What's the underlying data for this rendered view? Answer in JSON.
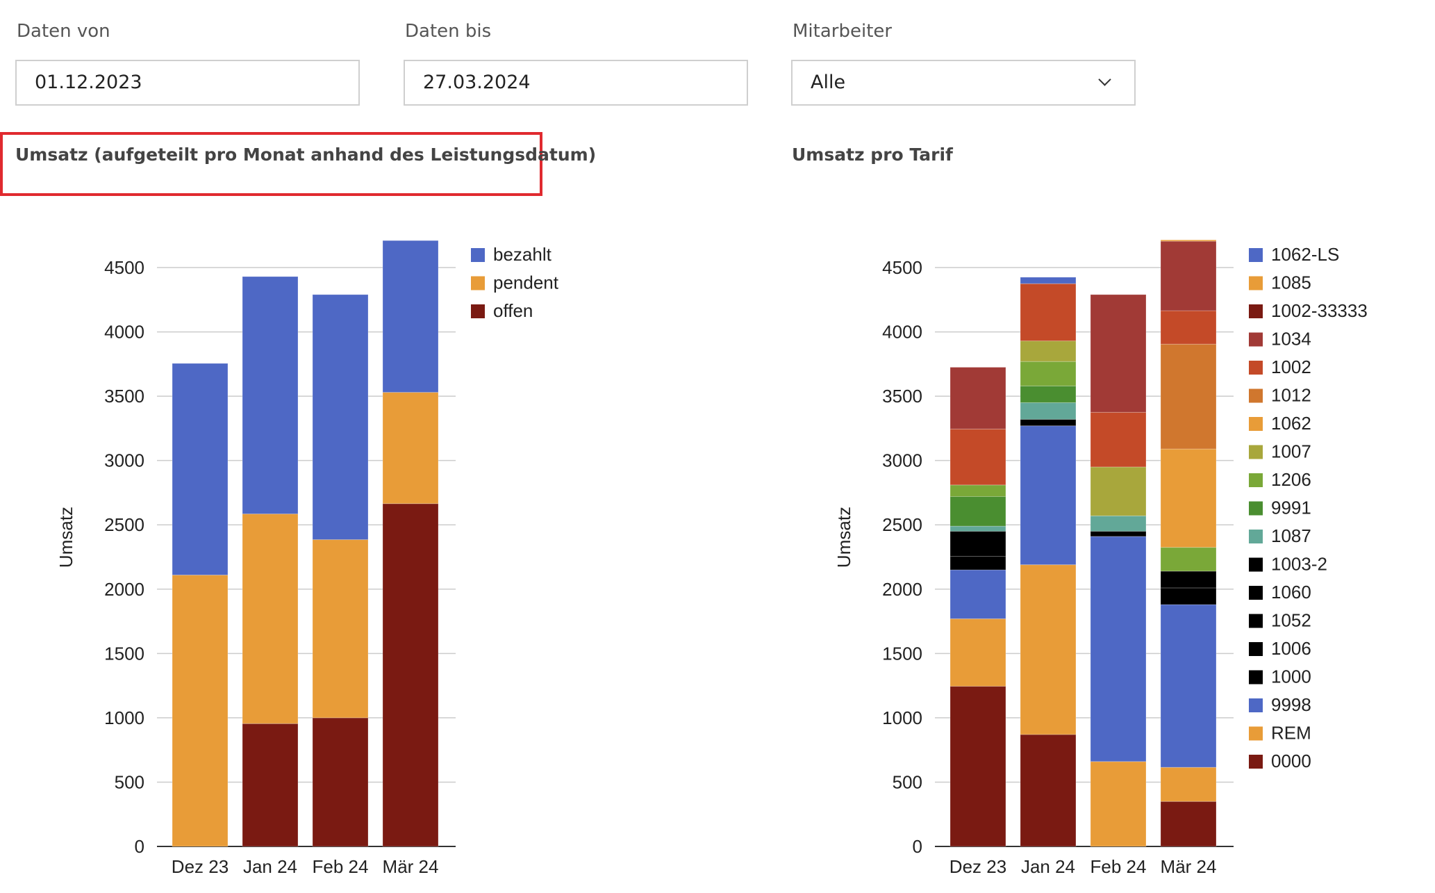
{
  "filters": {
    "date_from": {
      "label": "Daten von",
      "value": "01.12.2023"
    },
    "date_to": {
      "label": "Daten bis",
      "value": "27.03.2024"
    },
    "employee": {
      "label": "Mitarbeiter",
      "value": "Alle"
    }
  },
  "chart_data": [
    {
      "type": "bar",
      "stacked": true,
      "title": "Umsatz (aufgeteilt pro Monat anhand des Leistungsdatum)",
      "xlabel": "",
      "ylabel": "Umsatz",
      "ylim": [
        0,
        4700
      ],
      "yticks": [
        0,
        500,
        1000,
        1500,
        2000,
        2500,
        3000,
        3500,
        4000,
        4500
      ],
      "grid": true,
      "legend": "right",
      "categories": [
        "Dez 23",
        "Jan 24",
        "Feb 24",
        "Mär 24"
      ],
      "series": [
        {
          "name": "bezahlt",
          "color": "#4e68c5",
          "values": [
            1645,
            1845,
            1905,
            1180
          ]
        },
        {
          "name": "pendent",
          "color": "#e89c38",
          "values": [
            2110,
            1630,
            1385,
            865
          ]
        },
        {
          "name": "offen",
          "color": "#7a1a12",
          "values": [
            0,
            955,
            1000,
            2665
          ]
        }
      ]
    },
    {
      "type": "bar",
      "stacked": true,
      "title": "Umsatz pro Tarif",
      "xlabel": "",
      "ylabel": "Umsatz",
      "ylim": [
        0,
        4700
      ],
      "yticks": [
        0,
        500,
        1000,
        1500,
        2000,
        2500,
        3000,
        3500,
        4000,
        4500
      ],
      "grid": true,
      "legend": "right",
      "categories": [
        "Dez 23",
        "Jan 24",
        "Feb 24",
        "Mär 24"
      ],
      "series": [
        {
          "name": "1062-LS",
          "color": "#4e68c5",
          "values": [
            0,
            50,
            0,
            0
          ]
        },
        {
          "name": "1085",
          "color": "#e89c38",
          "values": [
            0,
            0,
            0,
            10
          ]
        },
        {
          "name": "1002-33333",
          "color": "#7a1a12",
          "values": [
            0,
            0,
            0,
            0
          ]
        },
        {
          "name": "1034",
          "color": "#a13a36",
          "values": [
            480,
            0,
            915,
            540
          ]
        },
        {
          "name": "1002",
          "color": "#c44a28",
          "values": [
            435,
            445,
            425,
            260
          ]
        },
        {
          "name": "1012",
          "color": "#d0772e",
          "values": [
            0,
            0,
            0,
            815
          ]
        },
        {
          "name": "1062",
          "color": "#e89c38",
          "values": [
            0,
            0,
            0,
            765
          ]
        },
        {
          "name": "1007",
          "color": "#a8a73c",
          "values": [
            0,
            160,
            380,
            0
          ]
        },
        {
          "name": "1206",
          "color": "#7aa838",
          "values": [
            90,
            190,
            0,
            185
          ]
        },
        {
          "name": "9991",
          "color": "#4a8e30",
          "values": [
            230,
            130,
            0,
            0
          ]
        },
        {
          "name": "1087",
          "color": "#62a898",
          "values": [
            40,
            130,
            120,
            0
          ]
        },
        {
          "name": "1003-2",
          "color": "#000000",
          "values": [
            195,
            50,
            40,
            130
          ]
        },
        {
          "name": "1060",
          "color": "#000000",
          "values": [
            0,
            0,
            0,
            0
          ]
        },
        {
          "name": "1052",
          "color": "#000000",
          "values": [
            0,
            0,
            0,
            0
          ]
        },
        {
          "name": "1006",
          "color": "#000000",
          "values": [
            0,
            0,
            0,
            0
          ]
        },
        {
          "name": "1000",
          "color": "#000000",
          "values": [
            105,
            0,
            0,
            130
          ]
        },
        {
          "name": "9998",
          "color": "#4e68c5",
          "values": [
            380,
            1080,
            1750,
            1265
          ]
        },
        {
          "name": "REM",
          "color": "#e89c38",
          "values": [
            525,
            1320,
            660,
            265
          ]
        },
        {
          "name": "0000",
          "color": "#7a1a12",
          "values": [
            1245,
            870,
            0,
            350
          ]
        }
      ]
    }
  ]
}
